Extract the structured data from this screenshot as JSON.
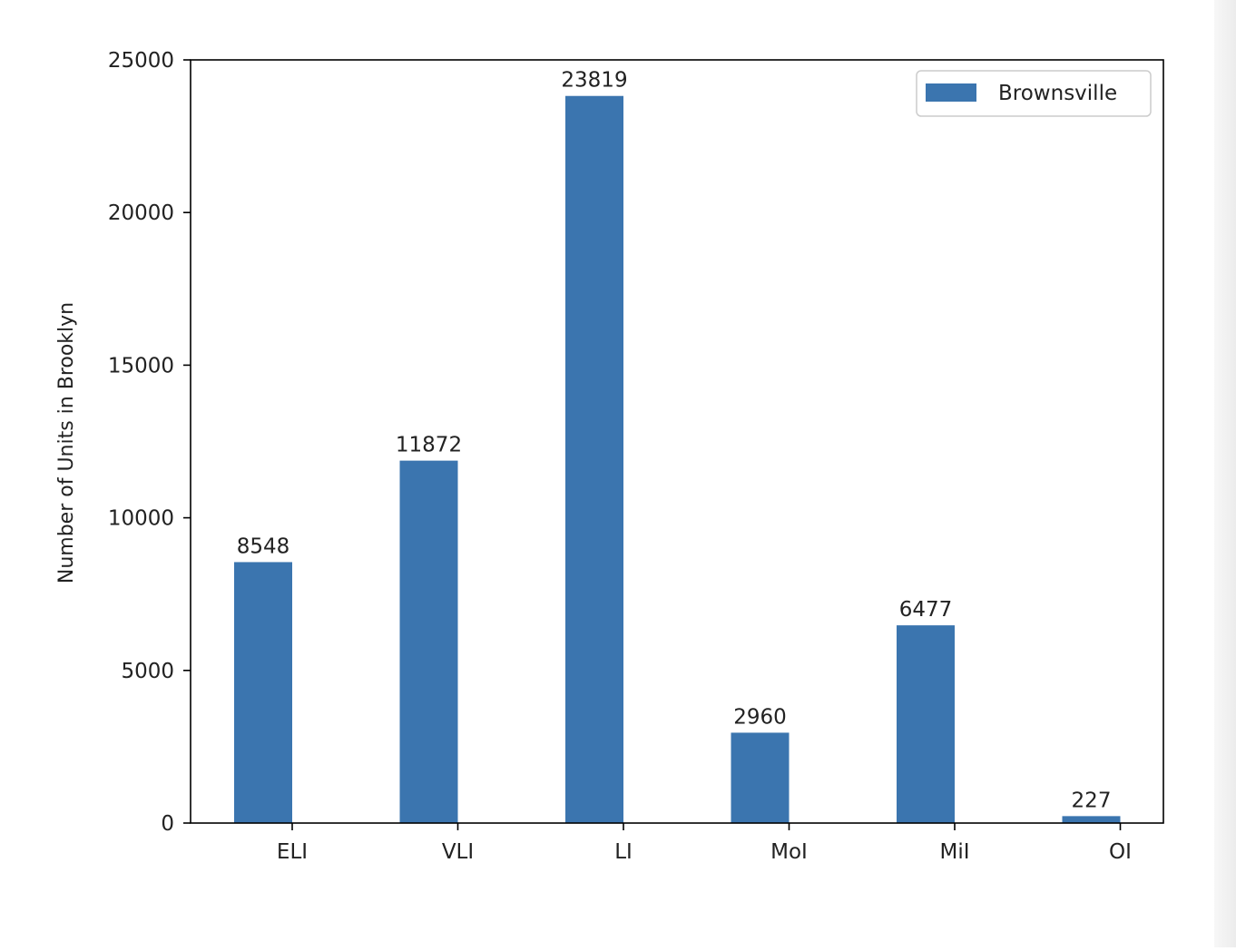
{
  "chart_data": {
    "type": "bar",
    "categories": [
      "ELI",
      "VLI",
      "LI",
      "MoI",
      "MiI",
      "OI"
    ],
    "series": [
      {
        "name": "Brownsville",
        "values": [
          8548,
          11872,
          23819,
          2960,
          6477,
          227
        ]
      }
    ],
    "data_labels": [
      "8548",
      "11872",
      "23819",
      "2960",
      "6477",
      "227"
    ],
    "title": "",
    "xlabel": "",
    "ylabel": "Number of Units in Brooklyn",
    "ylim": [
      0,
      25000
    ],
    "yticks": [
      0,
      5000,
      10000,
      15000,
      20000,
      25000
    ],
    "ytick_labels": [
      "0",
      "5000",
      "10000",
      "15000",
      "20000",
      "25000"
    ],
    "grid": false,
    "legend": {
      "position": "top-right",
      "entries": [
        "Brownsville"
      ]
    },
    "colors": {
      "bar": "#3b75af"
    }
  }
}
